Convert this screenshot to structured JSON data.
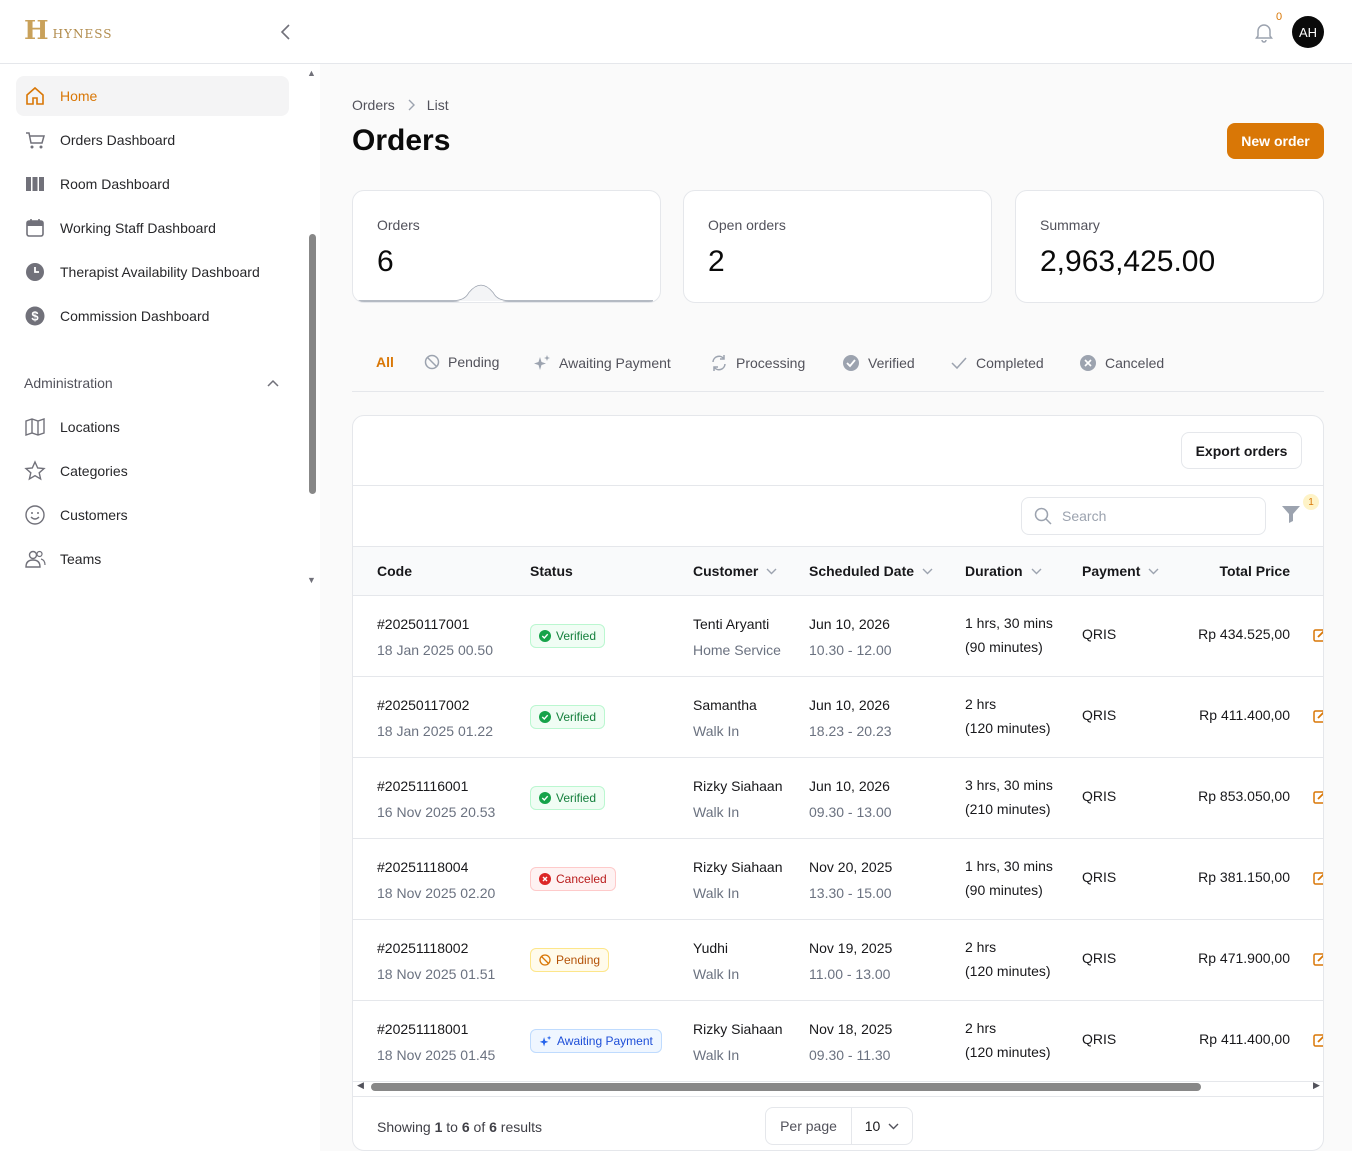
{
  "brand": {
    "logo_mark": "H",
    "logo_text": "HYNESS"
  },
  "header": {
    "notification_count": "0",
    "avatar_initials": "AH"
  },
  "sidebar": {
    "items": [
      {
        "label": "Home",
        "icon": "home-icon",
        "active": true
      },
      {
        "label": "Orders Dashboard",
        "icon": "cart-icon"
      },
      {
        "label": "Room Dashboard",
        "icon": "columns-icon"
      },
      {
        "label": "Working Staff Dashboard",
        "icon": "calendar-icon"
      },
      {
        "label": "Therapist Availability Dashboard",
        "icon": "clock-icon"
      },
      {
        "label": "Commission Dashboard",
        "icon": "dollar-icon"
      }
    ],
    "section_title": "Administration",
    "admin_items": [
      {
        "label": "Locations",
        "icon": "map-icon"
      },
      {
        "label": "Categories",
        "icon": "star-icon"
      },
      {
        "label": "Customers",
        "icon": "smile-icon"
      },
      {
        "label": "Teams",
        "icon": "users-icon"
      }
    ]
  },
  "breadcrumb": {
    "parent": "Orders",
    "current": "List"
  },
  "page": {
    "title": "Orders",
    "new_order_label": "New order"
  },
  "stats": [
    {
      "label": "Orders",
      "value": "6"
    },
    {
      "label": "Open orders",
      "value": "2"
    },
    {
      "label": "Summary",
      "value": "2,963,425.00"
    }
  ],
  "tabs": [
    {
      "label": "All",
      "icon": ""
    },
    {
      "label": "Pending",
      "icon": "ban-icon"
    },
    {
      "label": "Awaiting Payment",
      "icon": "sparkles-icon"
    },
    {
      "label": "Processing",
      "icon": "refresh-icon"
    },
    {
      "label": "Verified",
      "icon": "check-badge-icon"
    },
    {
      "label": "Completed",
      "icon": "check-icon"
    },
    {
      "label": "Canceled",
      "icon": "x-circle-icon"
    }
  ],
  "table": {
    "export_label": "Export orders",
    "search_placeholder": "Search",
    "filter_count": "1",
    "columns": {
      "code": "Code",
      "status": "Status",
      "customer": "Customer",
      "scheduled": "Scheduled Date",
      "duration": "Duration",
      "payment": "Payment",
      "total": "Total Price"
    },
    "rows": [
      {
        "code": "#20250117001",
        "created": "18 Jan 2025 00.50",
        "status": "Verified",
        "status_type": "verified",
        "customer": "Tenti Aryanti",
        "service": "Home Service",
        "date": "Jun 10, 2026",
        "time": "10.30 - 12.00",
        "duration": "1 hrs, 30 mins",
        "minutes": "(90 minutes)",
        "payment": "QRIS",
        "price": "Rp 434.525,00"
      },
      {
        "code": "#20250117002",
        "created": "18 Jan 2025 01.22",
        "status": "Verified",
        "status_type": "verified",
        "customer": "Samantha",
        "service": "Walk In",
        "date": "Jun 10, 2026",
        "time": "18.23 - 20.23",
        "duration": "2 hrs",
        "minutes": "(120 minutes)",
        "payment": "QRIS",
        "price": "Rp 411.400,00"
      },
      {
        "code": "#20251116001",
        "created": "16 Nov 2025 20.53",
        "status": "Verified",
        "status_type": "verified",
        "customer": "Rizky Siahaan",
        "service": "Walk In",
        "date": "Jun 10, 2026",
        "time": "09.30 - 13.00",
        "duration": "3 hrs, 30 mins",
        "minutes": "(210 minutes)",
        "payment": "QRIS",
        "price": "Rp 853.050,00"
      },
      {
        "code": "#20251118004",
        "created": "18 Nov 2025 02.20",
        "status": "Canceled",
        "status_type": "canceled",
        "customer": "Rizky Siahaan",
        "service": "Walk In",
        "date": "Nov 20, 2025",
        "time": "13.30 - 15.00",
        "duration": "1 hrs, 30 mins",
        "minutes": "(90 minutes)",
        "payment": "QRIS",
        "price": "Rp 381.150,00"
      },
      {
        "code": "#20251118002",
        "created": "18 Nov 2025 01.51",
        "status": "Pending",
        "status_type": "pending",
        "customer": "Yudhi",
        "service": "Walk In",
        "date": "Nov 19, 2025",
        "time": "11.00 - 13.00",
        "duration": "2 hrs",
        "minutes": "(120 minutes)",
        "payment": "QRIS",
        "price": "Rp 471.900,00"
      },
      {
        "code": "#20251118001",
        "created": "18 Nov 2025 01.45",
        "status": "Awaiting Payment",
        "status_type": "awaiting",
        "customer": "Rizky Siahaan",
        "service": "Walk In",
        "date": "Nov 18, 2025",
        "time": "09.30 - 11.30",
        "duration": "2 hrs",
        "minutes": "(120 minutes)",
        "payment": "QRIS",
        "price": "Rp 411.400,00"
      }
    ],
    "footer": {
      "prefix": "Showing ",
      "from": "1",
      "to_word": " to ",
      "to": "6",
      "of_word": " of ",
      "total": "6",
      "suffix": " results"
    },
    "per_page_label": "Per page",
    "per_page_value": "10"
  },
  "colors": {
    "accent": "#d97706",
    "verified": "#16a34a",
    "canceled": "#dc2626",
    "pending": "#d97706",
    "awaiting": "#2563eb"
  }
}
